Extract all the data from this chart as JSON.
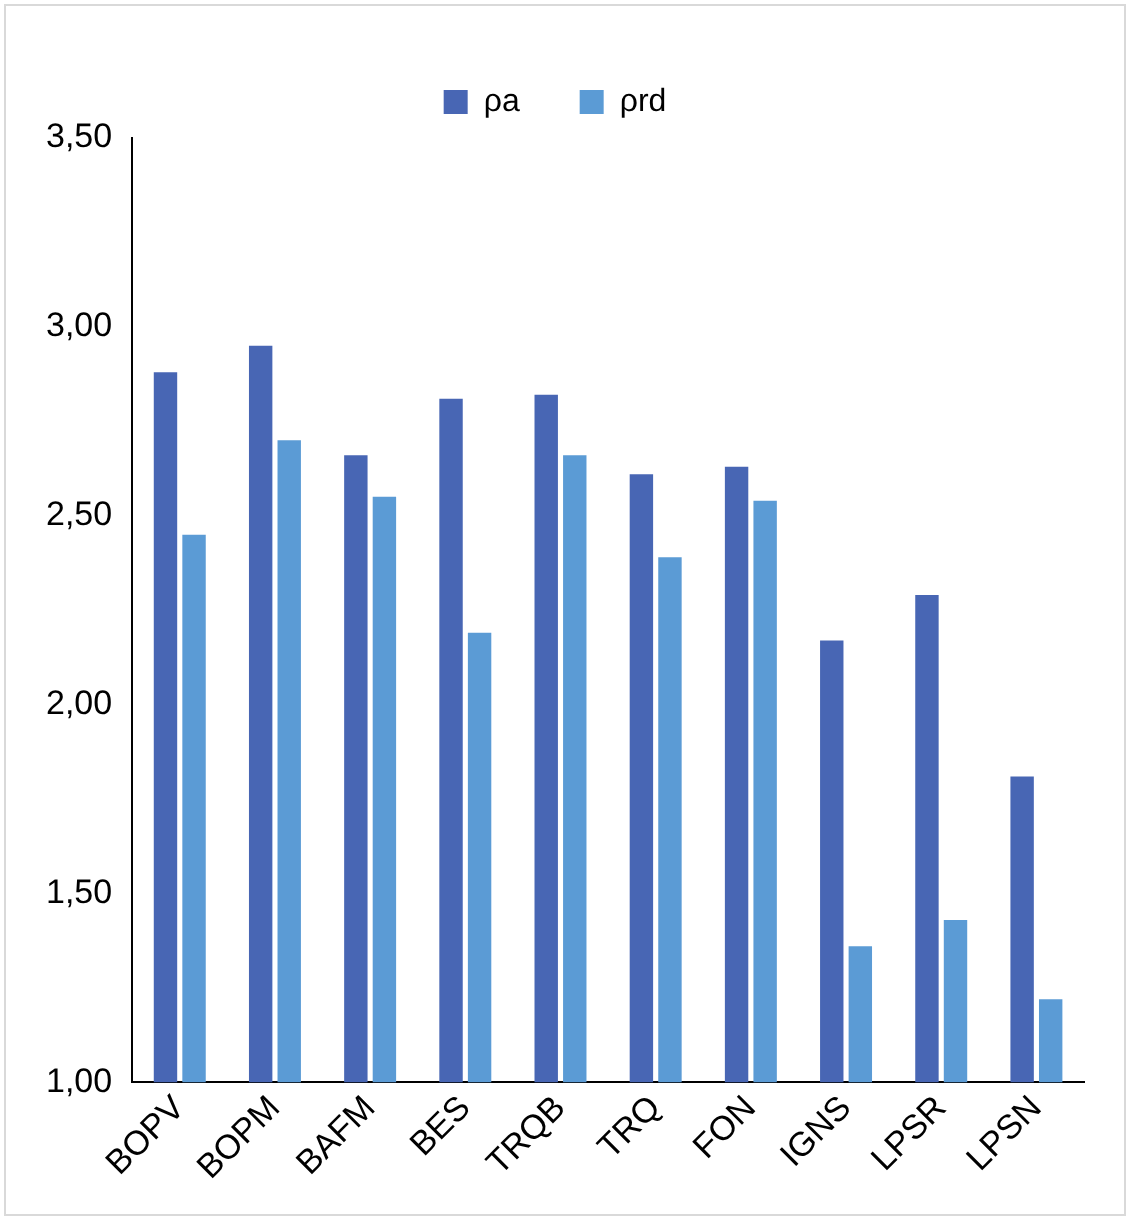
{
  "chart_data": {
    "type": "bar",
    "categories": [
      "BOPV",
      "BOPM",
      "BAFM",
      "BES",
      "TRQB",
      "TRQ",
      "FON",
      "IGNS",
      "LPSR",
      "LPSN"
    ],
    "series": [
      {
        "name": "ρa",
        "color": "#4866b4",
        "values": [
          2.88,
          2.95,
          2.66,
          2.81,
          2.82,
          2.61,
          2.63,
          2.17,
          2.29,
          1.81
        ]
      },
      {
        "name": "ρrd",
        "color": "#5b9bd5",
        "values": [
          2.45,
          2.7,
          2.55,
          2.19,
          2.66,
          2.39,
          2.54,
          1.36,
          1.43,
          1.22
        ]
      }
    ],
    "ylim": [
      1,
      3.5
    ],
    "yticks": [
      {
        "value": 1,
        "label": "1,00"
      },
      {
        "value": 1.5,
        "label": "1,50"
      },
      {
        "value": 2,
        "label": "2,00"
      },
      {
        "value": 2.5,
        "label": "2,50"
      },
      {
        "value": 3,
        "label": "3,00"
      },
      {
        "value": 3.5,
        "label": "3,50"
      }
    ],
    "grid": false,
    "legend": "top"
  }
}
